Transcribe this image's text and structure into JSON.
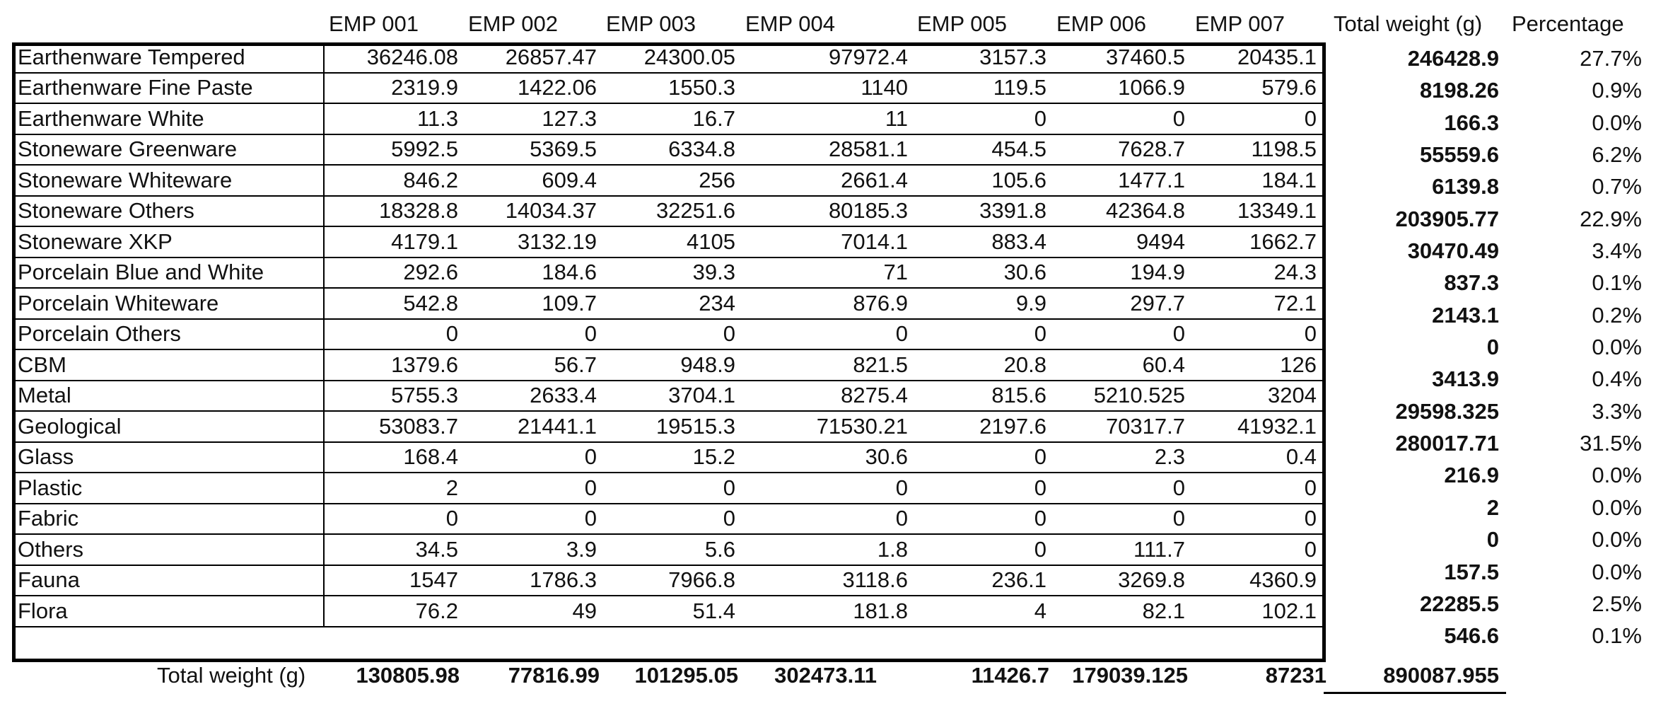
{
  "headers": {
    "columns": [
      "EMP 001",
      "EMP 002",
      "EMP 003",
      "EMP 004",
      "EMP 005",
      "EMP 006",
      "EMP 007"
    ],
    "total_weight": "Total weight (g)",
    "percentage": "Percentage"
  },
  "rows": [
    {
      "label": "Earthenware Tempered",
      "values": [
        "36246.08",
        "26857.47",
        "24300.05",
        "97972.4",
        "3157.3",
        "37460.5",
        "20435.1"
      ],
      "total": "246428.9",
      "pct": "27.7%"
    },
    {
      "label": "Earthenware Fine Paste",
      "values": [
        "2319.9",
        "1422.06",
        "1550.3",
        "1140",
        "119.5",
        "1066.9",
        "579.6"
      ],
      "total": "8198.26",
      "pct": "0.9%"
    },
    {
      "label": "Earthenware White",
      "values": [
        "11.3",
        "127.3",
        "16.7",
        "11",
        "0",
        "0",
        "0"
      ],
      "total": "166.3",
      "pct": "0.0%"
    },
    {
      "label": "Stoneware Greenware",
      "values": [
        "5992.5",
        "5369.5",
        "6334.8",
        "28581.1",
        "454.5",
        "7628.7",
        "1198.5"
      ],
      "total": "55559.6",
      "pct": "6.2%"
    },
    {
      "label": "Stoneware Whiteware",
      "values": [
        "846.2",
        "609.4",
        "256",
        "2661.4",
        "105.6",
        "1477.1",
        "184.1"
      ],
      "total": "6139.8",
      "pct": "0.7%"
    },
    {
      "label": "Stoneware Others",
      "values": [
        "18328.8",
        "14034.37",
        "32251.6",
        "80185.3",
        "3391.8",
        "42364.8",
        "13349.1"
      ],
      "total": "203905.77",
      "pct": "22.9%"
    },
    {
      "label": "Stoneware XKP",
      "values": [
        "4179.1",
        "3132.19",
        "4105",
        "7014.1",
        "883.4",
        "9494",
        "1662.7"
      ],
      "total": "30470.49",
      "pct": "3.4%"
    },
    {
      "label": "Porcelain Blue and White",
      "values": [
        "292.6",
        "184.6",
        "39.3",
        "71",
        "30.6",
        "194.9",
        "24.3"
      ],
      "total": "837.3",
      "pct": "0.1%"
    },
    {
      "label": "Porcelain Whiteware",
      "values": [
        "542.8",
        "109.7",
        "234",
        "876.9",
        "9.9",
        "297.7",
        "72.1"
      ],
      "total": "2143.1",
      "pct": "0.2%"
    },
    {
      "label": "Porcelain Others",
      "values": [
        "0",
        "0",
        "0",
        "0",
        "0",
        "0",
        "0"
      ],
      "total": "0",
      "pct": "0.0%"
    },
    {
      "label": "CBM",
      "values": [
        "1379.6",
        "56.7",
        "948.9",
        "821.5",
        "20.8",
        "60.4",
        "126"
      ],
      "total": "3413.9",
      "pct": "0.4%"
    },
    {
      "label": "Metal",
      "values": [
        "5755.3",
        "2633.4",
        "3704.1",
        "8275.4",
        "815.6",
        "5210.525",
        "3204"
      ],
      "total": "29598.325",
      "pct": "3.3%"
    },
    {
      "label": "Geological",
      "values": [
        "53083.7",
        "21441.1",
        "19515.3",
        "71530.21",
        "2197.6",
        "70317.7",
        "41932.1"
      ],
      "total": "280017.71",
      "pct": "31.5%"
    },
    {
      "label": "Glass",
      "values": [
        "168.4",
        "0",
        "15.2",
        "30.6",
        "0",
        "2.3",
        "0.4"
      ],
      "total": "216.9",
      "pct": "0.0%"
    },
    {
      "label": "Plastic",
      "values": [
        "2",
        "0",
        "0",
        "0",
        "0",
        "0",
        "0"
      ],
      "total": "2",
      "pct": "0.0%"
    },
    {
      "label": "Fabric",
      "values": [
        "0",
        "0",
        "0",
        "0",
        "0",
        "0",
        "0"
      ],
      "total": "0",
      "pct": "0.0%"
    },
    {
      "label": "Others",
      "values": [
        "34.5",
        "3.9",
        "5.6",
        "1.8",
        "0",
        "111.7",
        "0"
      ],
      "total": "157.5",
      "pct": "0.0%"
    },
    {
      "label": "Fauna",
      "values": [
        "1547",
        "1786.3",
        "7966.8",
        "3118.6",
        "236.1",
        "3269.8",
        "4360.9"
      ],
      "total": "22285.5",
      "pct": "2.5%"
    },
    {
      "label": "Flora",
      "values": [
        "76.2",
        "49",
        "51.4",
        "181.8",
        "4",
        "82.1",
        "102.1"
      ],
      "total": "546.6",
      "pct": "0.1%"
    }
  ],
  "totals": {
    "label": "Total weight (g)",
    "values": [
      "130805.98",
      "77816.99",
      "101295.05",
      "302473.11",
      "11426.7",
      "179039.125",
      "87231"
    ],
    "grand_total": "890087.955"
  }
}
